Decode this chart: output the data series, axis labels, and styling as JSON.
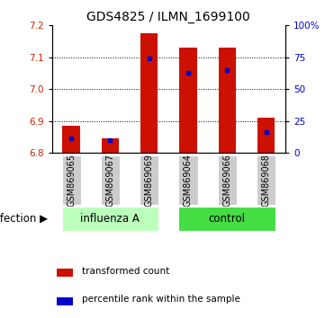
{
  "title": "GDS4825 / ILMN_1699100",
  "samples": [
    "GSM869065",
    "GSM869067",
    "GSM869069",
    "GSM869064",
    "GSM869066",
    "GSM869068"
  ],
  "groups": [
    "influenza A",
    "influenza A",
    "influenza A",
    "control",
    "control",
    "control"
  ],
  "base": 6.8,
  "red_tops": [
    6.885,
    6.845,
    7.175,
    7.13,
    7.13,
    6.91
  ],
  "blue_values": [
    6.845,
    6.84,
    7.095,
    7.05,
    7.06,
    6.865
  ],
  "ylim_left": [
    6.8,
    7.2
  ],
  "ylim_right": [
    0,
    100
  ],
  "yticks_left": [
    6.8,
    6.9,
    7.0,
    7.1,
    7.2
  ],
  "yticks_right": [
    0,
    25,
    50,
    75,
    100
  ],
  "red_color": "#CC1100",
  "blue_color": "#0000CC",
  "bar_width": 0.45,
  "group_colors": {
    "influenza A": "#BBFFBB",
    "control": "#44DD44"
  },
  "group_label": "infection",
  "legend_items": [
    "transformed count",
    "percentile rank within the sample"
  ],
  "tick_label_color_left": "#CC2200",
  "tick_label_color_right": "#0000CC",
  "background_color": "#ffffff",
  "bar_bg_color": "#CCCCCC",
  "title_fontsize": 10,
  "tick_fontsize": 7.5,
  "sample_fontsize": 7.0,
  "group_label_fontsize": 8.5,
  "legend_fontsize": 7.5,
  "infection_label_fontsize": 8.5
}
